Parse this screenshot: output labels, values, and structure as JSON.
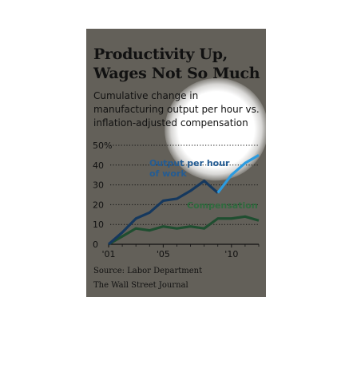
{
  "figure": {
    "title_line1": "Productivity Up,",
    "title_line2": "Wages Not So Much",
    "subtitle_line1": "Cumulative change in",
    "subtitle_line2": "manufacturing output per hour vs.",
    "subtitle_line3": "inflation-adjusted compensation",
    "source": "Source: Labor Department",
    "credit": "The Wall Street Journal"
  },
  "colors": {
    "background": "#636059",
    "output_series": "#1e6fb0",
    "output_series_highlight": "#2b9be0",
    "compensation_series": "#1f4e30",
    "compensation_label": "#2f6b3e",
    "output_label": "#245c93"
  },
  "chart_data": {
    "type": "line",
    "ylim": [
      0,
      50
    ],
    "xlim": [
      2001,
      2012
    ],
    "y_ticks": [
      {
        "value": 0,
        "label": "0"
      },
      {
        "value": 10,
        "label": "10"
      },
      {
        "value": 20,
        "label": "20"
      },
      {
        "value": 30,
        "label": "30"
      },
      {
        "value": 40,
        "label": "40"
      },
      {
        "value": 50,
        "label": "50%"
      }
    ],
    "x_ticks": [
      {
        "value": 2001,
        "label": "'01"
      },
      {
        "value": 2005,
        "label": "'05"
      },
      {
        "value": 2010,
        "label": "'10"
      }
    ],
    "series": [
      {
        "name": "Output per hour of work",
        "label_line1": "Output per hour",
        "label_line2": "of work",
        "x": [
          2001,
          2002,
          2003,
          2004,
          2005,
          2006,
          2007,
          2008,
          2009,
          2010,
          2011,
          2012
        ],
        "values": [
          0,
          6,
          13,
          16,
          22,
          23,
          27,
          32,
          26,
          35,
          41,
          45
        ]
      },
      {
        "name": "Compensation",
        "label_line1": "Compensation",
        "x": [
          2001,
          2002,
          2003,
          2004,
          2005,
          2006,
          2007,
          2008,
          2009,
          2010,
          2011,
          2012
        ],
        "values": [
          0,
          4,
          8,
          7,
          9,
          8,
          9,
          8,
          13,
          13,
          14,
          12
        ]
      }
    ]
  }
}
